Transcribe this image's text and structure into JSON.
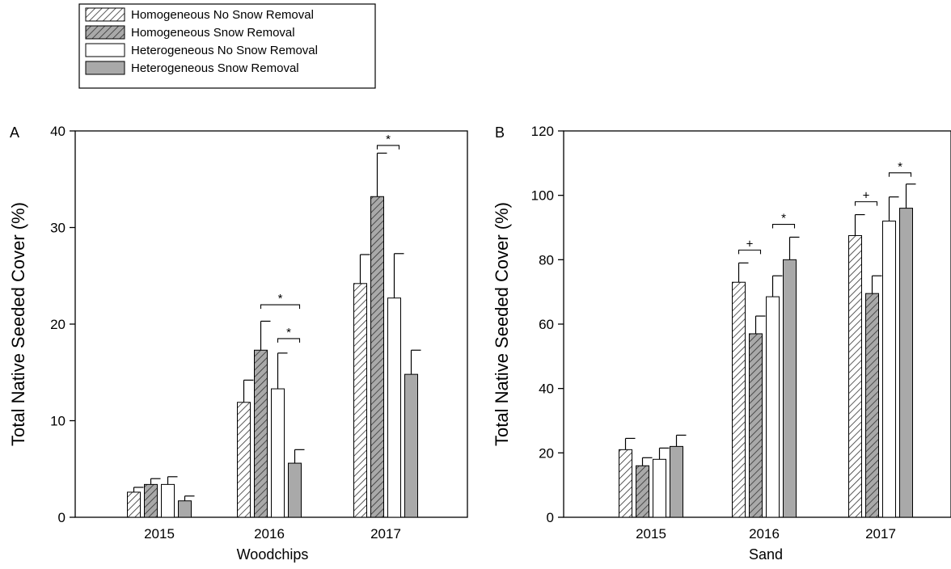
{
  "legend": {
    "entries": [
      {
        "label": "Homogeneous No Snow Removal",
        "pattern": "hatch-white"
      },
      {
        "label": "Homogeneous Snow Removal",
        "pattern": "hatch-gray"
      },
      {
        "label": "Heterogeneous No Snow Removal",
        "pattern": "solid-white"
      },
      {
        "label": "Heterogeneous Snow Removal",
        "pattern": "solid-gray"
      }
    ],
    "placement": "top-left"
  },
  "chart_data": [
    {
      "type": "bar",
      "panel_label": "A",
      "title": "",
      "xlabel": "Woodchips",
      "ylabel": "Total Native Seeded Cover (%)",
      "ylim": [
        0,
        40
      ],
      "yticks": [
        0,
        10,
        20,
        30,
        40
      ],
      "categories": [
        "2015",
        "2016",
        "2017"
      ],
      "series": [
        {
          "name": "Homogeneous No Snow Removal",
          "values": [
            2.6,
            11.9,
            24.2
          ],
          "errors": [
            0.5,
            2.3,
            3.0
          ]
        },
        {
          "name": "Homogeneous Snow Removal",
          "values": [
            3.4,
            17.3,
            33.2
          ],
          "errors": [
            0.6,
            3.0,
            4.5
          ]
        },
        {
          "name": "Heterogeneous No Snow Removal",
          "values": [
            3.4,
            13.3,
            22.7
          ],
          "errors": [
            0.8,
            3.7,
            4.6
          ]
        },
        {
          "name": "Heterogeneous Snow Removal",
          "values": [
            1.7,
            5.6,
            14.8
          ],
          "errors": [
            0.5,
            1.4,
            2.5
          ]
        }
      ],
      "annotations": [
        {
          "text": "*",
          "category": 1,
          "from_series": 1,
          "to_series": 3,
          "level": 22.0
        },
        {
          "text": "*",
          "category": 1,
          "from_series": 2,
          "to_series": 3,
          "level": 18.5
        },
        {
          "text": "*",
          "category": 2,
          "from_series": 1,
          "to_series": 2,
          "level": 38.5
        }
      ]
    },
    {
      "type": "bar",
      "panel_label": "B",
      "title": "",
      "xlabel": "Sand",
      "ylabel": "Total Native Seeded Cover (%)",
      "ylim": [
        0,
        120
      ],
      "yticks": [
        0,
        20,
        40,
        60,
        80,
        100,
        120
      ],
      "categories": [
        "2015",
        "2016",
        "2017"
      ],
      "series": [
        {
          "name": "Homogeneous No Snow Removal",
          "values": [
            21,
            73,
            87.5
          ],
          "errors": [
            3.5,
            6,
            6.5
          ]
        },
        {
          "name": "Homogeneous Snow Removal",
          "values": [
            16,
            57,
            69.5
          ],
          "errors": [
            2.5,
            5.5,
            5.5
          ]
        },
        {
          "name": "Heterogeneous No Snow Removal",
          "values": [
            18,
            68.5,
            92
          ],
          "errors": [
            3.5,
            6.5,
            7.5
          ]
        },
        {
          "name": "Heterogeneous Snow Removal",
          "values": [
            22,
            80,
            96
          ],
          "errors": [
            3.5,
            7,
            7.5
          ]
        }
      ],
      "annotations": [
        {
          "text": "+",
          "category": 1,
          "from_series": 0,
          "to_series": 1,
          "level": 83
        },
        {
          "text": "*",
          "category": 1,
          "from_series": 2,
          "to_series": 3,
          "level": 91
        },
        {
          "text": "+",
          "category": 2,
          "from_series": 0,
          "to_series": 1,
          "level": 98
        },
        {
          "text": "*",
          "category": 2,
          "from_series": 2,
          "to_series": 3,
          "level": 107
        }
      ]
    }
  ]
}
